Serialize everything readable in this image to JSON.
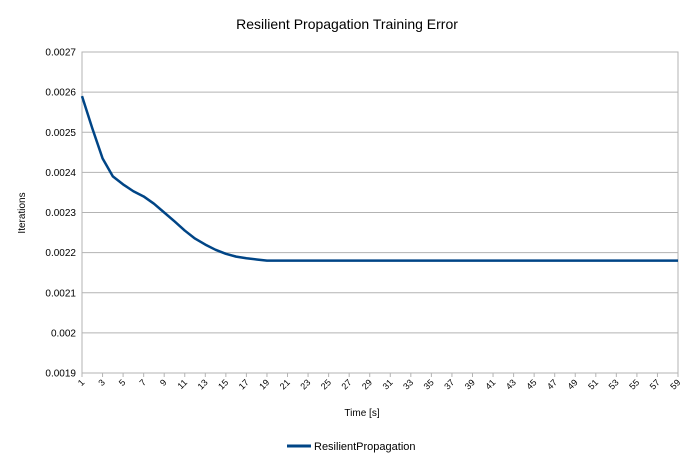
{
  "chart_data": {
    "type": "line",
    "title": "Resilient Propagation Training Error",
    "xlabel": "Time [s]",
    "ylabel": "Iterations",
    "ylim": [
      0.0019,
      0.0027
    ],
    "yticks": [
      "0.0019",
      "0.002",
      "0.0021",
      "0.0022",
      "0.0023",
      "0.0024",
      "0.0025",
      "0.0026",
      "0.0027"
    ],
    "ytick_values": [
      0.0019,
      0.002,
      0.0021,
      0.0022,
      0.0023,
      0.0024,
      0.0025,
      0.0026,
      0.0027
    ],
    "x": [
      1,
      2,
      3,
      4,
      5,
      6,
      7,
      8,
      9,
      10,
      11,
      12,
      13,
      14,
      15,
      16,
      17,
      18,
      19,
      20,
      21,
      22,
      23,
      24,
      25,
      26,
      27,
      28,
      29,
      30,
      31,
      32,
      33,
      34,
      35,
      36,
      37,
      38,
      39,
      40,
      41,
      42,
      43,
      44,
      45,
      46,
      47,
      48,
      49,
      50,
      51,
      52,
      53,
      54,
      55,
      56,
      57,
      58,
      59
    ],
    "xticks": [
      "1",
      "3",
      "5",
      "7",
      "9",
      "11",
      "13",
      "15",
      "17",
      "19",
      "21",
      "23",
      "25",
      "27",
      "29",
      "31",
      "33",
      "35",
      "37",
      "39",
      "41",
      "43",
      "45",
      "47",
      "49",
      "51",
      "53",
      "55",
      "57",
      "59"
    ],
    "series": [
      {
        "name": "ResilientPropagation",
        "color": "#004586",
        "values": [
          0.00259,
          0.00251,
          0.002435,
          0.00239,
          0.00237,
          0.002353,
          0.00234,
          0.002322,
          0.0023,
          0.002278,
          0.002255,
          0.002235,
          0.00222,
          0.002207,
          0.002197,
          0.00219,
          0.002186,
          0.002183,
          0.00218,
          0.00218,
          0.00218,
          0.00218,
          0.00218,
          0.00218,
          0.00218,
          0.00218,
          0.00218,
          0.00218,
          0.00218,
          0.00218,
          0.00218,
          0.00218,
          0.00218,
          0.00218,
          0.00218,
          0.00218,
          0.00218,
          0.00218,
          0.00218,
          0.00218,
          0.00218,
          0.00218,
          0.00218,
          0.00218,
          0.00218,
          0.00218,
          0.00218,
          0.00218,
          0.00218,
          0.00218,
          0.00218,
          0.00218,
          0.00218,
          0.00218,
          0.00218,
          0.00218,
          0.00218,
          0.00218,
          0.00218
        ]
      }
    ],
    "grid": true,
    "legend": "bottom"
  }
}
